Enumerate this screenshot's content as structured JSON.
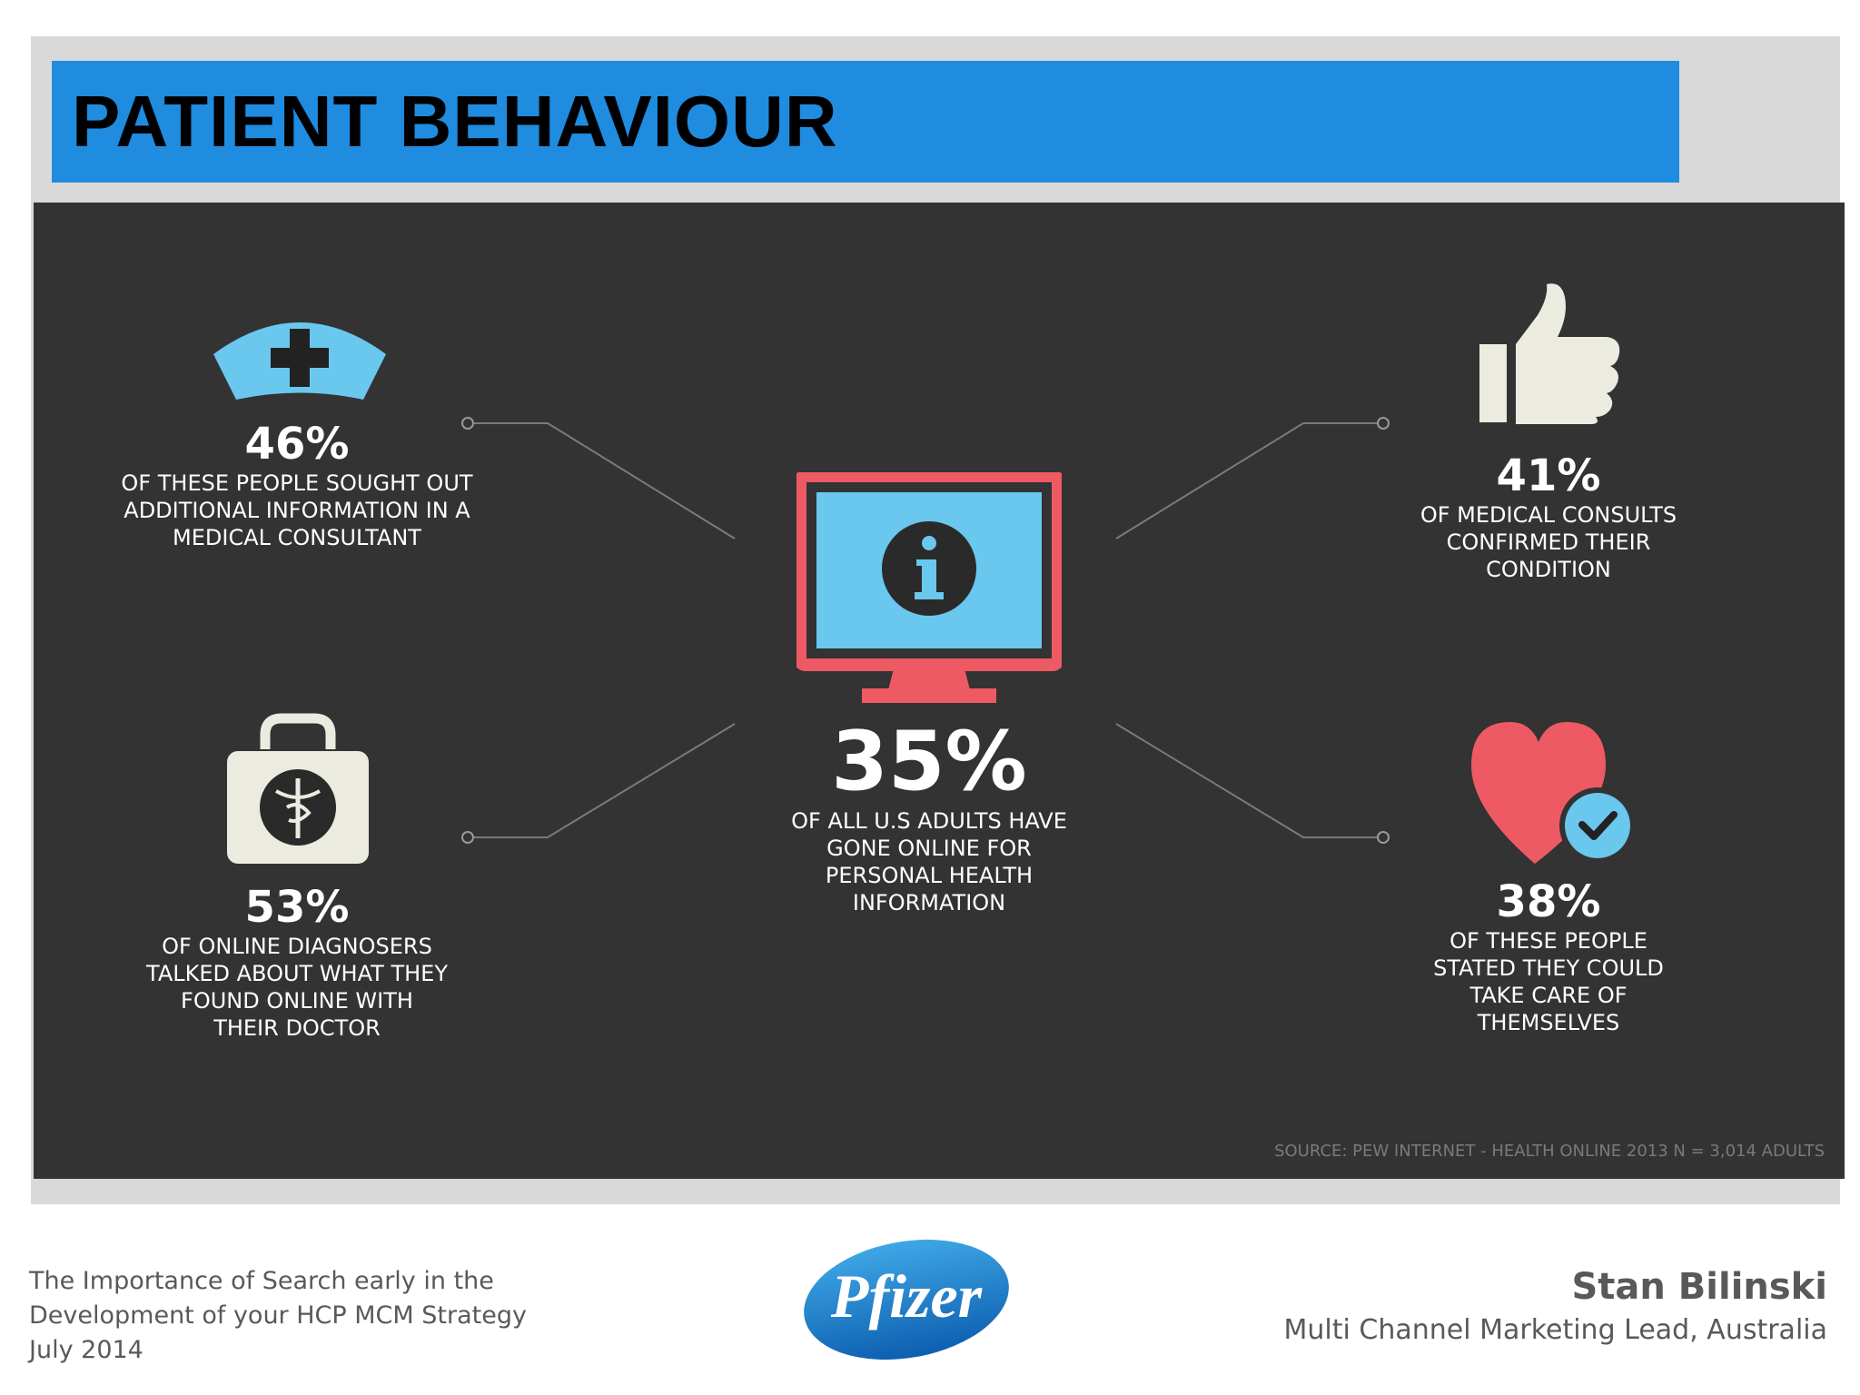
{
  "title": "PATIENT BEHAVIOUR",
  "infographic": {
    "top_left": {
      "percent": "46%",
      "lines": [
        "OF THESE PEOPLE SOUGHT OUT",
        "ADDITIONAL INFORMATION IN A",
        "MEDICAL CONSULTANT"
      ],
      "icon": "nurse-cap-icon"
    },
    "bottom_left": {
      "percent": "53%",
      "lines": [
        "OF ONLINE DIAGNOSERS",
        "TALKED ABOUT WHAT THEY",
        "FOUND ONLINE WITH",
        "THEIR DOCTOR"
      ],
      "icon": "medical-bag-icon"
    },
    "center": {
      "percent": "35%",
      "lines": [
        "OF ALL U.S ADULTS HAVE",
        "GONE ONLINE FOR",
        "PERSONAL HEALTH",
        "INFORMATION"
      ],
      "icon": "monitor-info-icon"
    },
    "top_right": {
      "percent": "41%",
      "lines": [
        "OF MEDICAL CONSULTS",
        "CONFIRMED THEIR",
        "CONDITION"
      ],
      "icon": "thumbs-up-icon"
    },
    "bottom_right": {
      "percent": "38%",
      "lines": [
        "OF THESE PEOPLE",
        "STATED THEY COULD",
        "TAKE CARE OF",
        "THEMSELVES"
      ],
      "icon": "heart-check-icon"
    },
    "source": "SOURCE: PEW INTERNET - HEALTH ONLINE 2013 N = 3,014 ADULTS",
    "colors": {
      "background": "#333333",
      "accent_blue": "#6ac7ee",
      "accent_red": "#ee5a64",
      "cream": "#ecebe0"
    }
  },
  "footer": {
    "left_lines": [
      "The Importance of Search early in the",
      "Development of your HCP MCM Strategy",
      "July 2014"
    ],
    "name": "Stan Bilinski",
    "role": "Multi Channel Marketing Lead, Australia",
    "logo_text": "Pfizer"
  }
}
